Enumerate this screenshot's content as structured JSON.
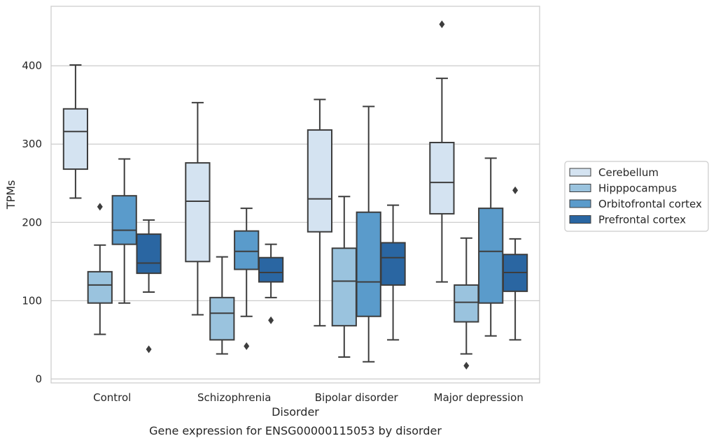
{
  "chart_data": {
    "type": "box",
    "title": "Gene expression for ENSG00000115053 by disorder",
    "xlabel": "Disorder",
    "ylabel": "TPMs",
    "ylim": [
      -5,
      476
    ],
    "yticks": [
      0,
      100,
      200,
      300,
      400
    ],
    "grid": true,
    "legend_position": "right",
    "categories": [
      "Control",
      "Schizophrenia",
      "Bipolar disorder",
      "Major depression"
    ],
    "series": [
      {
        "name": "Cerebellum",
        "color": "#d4e3f1",
        "boxes": [
          {
            "whisker_low": 231,
            "q1": 268,
            "median": 316,
            "q3": 345,
            "whisker_high": 401,
            "outliers": []
          },
          {
            "whisker_low": 82,
            "q1": 150,
            "median": 227,
            "q3": 276,
            "whisker_high": 353,
            "outliers": []
          },
          {
            "whisker_low": 68,
            "q1": 188,
            "median": 230,
            "q3": 318,
            "whisker_high": 357,
            "outliers": []
          },
          {
            "whisker_low": 124,
            "q1": 211,
            "median": 251,
            "q3": 302,
            "whisker_high": 384,
            "outliers": [
              453
            ]
          }
        ]
      },
      {
        "name": "Hipppocampus",
        "color": "#9ac3de",
        "boxes": [
          {
            "whisker_low": 57,
            "q1": 97,
            "median": 120,
            "q3": 137,
            "whisker_high": 171,
            "outliers": [
              220
            ]
          },
          {
            "whisker_low": 32,
            "q1": 50,
            "median": 84,
            "q3": 104,
            "whisker_high": 156,
            "outliers": []
          },
          {
            "whisker_low": 28,
            "q1": 68,
            "median": 125,
            "q3": 167,
            "whisker_high": 233,
            "outliers": []
          },
          {
            "whisker_low": 32,
            "q1": 73,
            "median": 98,
            "q3": 120,
            "whisker_high": 180,
            "outliers": [
              17
            ]
          }
        ]
      },
      {
        "name": "Orbitofrontal cortex",
        "color": "#5a9bcb",
        "boxes": [
          {
            "whisker_low": 97,
            "q1": 172,
            "median": 190,
            "q3": 234,
            "whisker_high": 281,
            "outliers": []
          },
          {
            "whisker_low": 80,
            "q1": 140,
            "median": 163,
            "q3": 189,
            "whisker_high": 218,
            "outliers": [
              42
            ]
          },
          {
            "whisker_low": 22,
            "q1": 80,
            "median": 124,
            "q3": 213,
            "whisker_high": 348,
            "outliers": []
          },
          {
            "whisker_low": 55,
            "q1": 97,
            "median": 163,
            "q3": 218,
            "whisker_high": 282,
            "outliers": []
          }
        ]
      },
      {
        "name": "Prefrontal cortex",
        "color": "#2a66a2",
        "boxes": [
          {
            "whisker_low": 111,
            "q1": 135,
            "median": 148,
            "q3": 185,
            "whisker_high": 203,
            "outliers": [
              38
            ]
          },
          {
            "whisker_low": 104,
            "q1": 124,
            "median": 136,
            "q3": 155,
            "whisker_high": 172,
            "outliers": [
              75
            ]
          },
          {
            "whisker_low": 50,
            "q1": 120,
            "median": 155,
            "q3": 174,
            "whisker_high": 222,
            "outliers": []
          },
          {
            "whisker_low": 50,
            "q1": 112,
            "median": 136,
            "q3": 159,
            "whisker_high": 179,
            "outliers": [
              241
            ]
          }
        ]
      }
    ]
  }
}
